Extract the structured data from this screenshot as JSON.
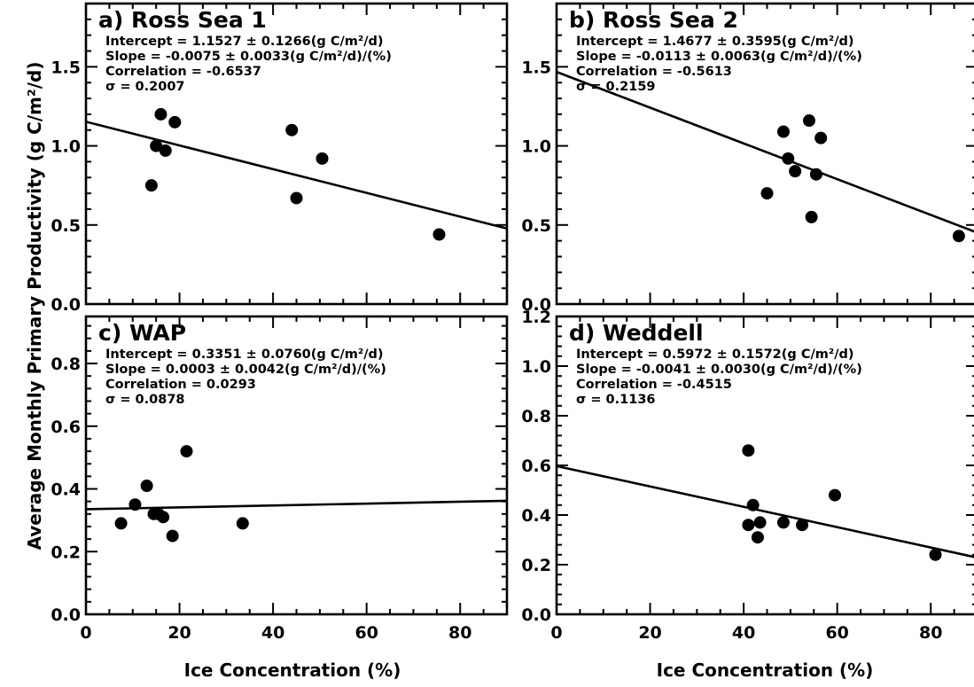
{
  "figure": {
    "xlabel": "Ice Concentration (%)",
    "ylabel": "Average Monthly Primary Productivity (g C/m²/d)"
  },
  "chart_data": [
    {
      "type": "scatter",
      "title": "a) Ross Sea 1",
      "xlim": [
        0,
        90
      ],
      "ylim": [
        0,
        1.9
      ],
      "yticks": [
        0.0,
        0.5,
        1.0,
        1.5
      ],
      "xticks": [
        0,
        20,
        40,
        60,
        80
      ],
      "annotations": [
        "Intercept = 1.1527 ± 0.1266(g C/m²/d)",
        "Slope = -0.0075 ± 0.0033(g C/m²/d)/(%)",
        "Correlation =   -0.6537",
        "σ = 0.2007"
      ],
      "fit": {
        "intercept": 1.1527,
        "slope": -0.0075
      },
      "points": [
        {
          "x": 14,
          "y": 0.75
        },
        {
          "x": 15,
          "y": 1.0
        },
        {
          "x": 16,
          "y": 1.2
        },
        {
          "x": 17,
          "y": 0.97
        },
        {
          "x": 19,
          "y": 1.15
        },
        {
          "x": 44,
          "y": 1.1
        },
        {
          "x": 45,
          "y": 0.67
        },
        {
          "x": 50.5,
          "y": 0.92
        },
        {
          "x": 75.5,
          "y": 0.44
        }
      ]
    },
    {
      "type": "scatter",
      "title": "b) Ross Sea 2",
      "xlim": [
        0,
        90
      ],
      "ylim": [
        0,
        1.9
      ],
      "yticks": [
        0.0,
        0.5,
        1.0,
        1.5
      ],
      "xticks": [
        0,
        20,
        40,
        60,
        80
      ],
      "annotations": [
        "Intercept = 1.4677 ± 0.3595(g C/m²/d)",
        "Slope = -0.0113 ± 0.0063(g C/m²/d)/(%)",
        "Correlation =   -0.5613",
        "σ = 0.2159"
      ],
      "fit": {
        "intercept": 1.4677,
        "slope": -0.0113
      },
      "points": [
        {
          "x": 45,
          "y": 0.7
        },
        {
          "x": 48.5,
          "y": 1.09
        },
        {
          "x": 49.5,
          "y": 0.92
        },
        {
          "x": 51,
          "y": 0.84
        },
        {
          "x": 54,
          "y": 1.16
        },
        {
          "x": 54.5,
          "y": 0.55
        },
        {
          "x": 55.5,
          "y": 0.82
        },
        {
          "x": 56.5,
          "y": 1.05
        },
        {
          "x": 86,
          "y": 0.43
        }
      ]
    },
    {
      "type": "scatter",
      "title": "c) WAP",
      "xlim": [
        0,
        90
      ],
      "ylim": [
        0,
        0.95
      ],
      "yticks": [
        0.0,
        0.2,
        0.4,
        0.6,
        0.8
      ],
      "xticks": [
        0,
        20,
        40,
        60,
        80
      ],
      "annotations": [
        "Intercept = 0.3351 ± 0.0760(g C/m²/d)",
        "Slope = 0.0003 ± 0.0042(g C/m²/d)/(%)",
        "Correlation =   0.0293",
        "σ = 0.0878"
      ],
      "fit": {
        "intercept": 0.3351,
        "slope": 0.0003
      },
      "points": [
        {
          "x": 7.5,
          "y": 0.29
        },
        {
          "x": 10.5,
          "y": 0.35
        },
        {
          "x": 13,
          "y": 0.41
        },
        {
          "x": 14.5,
          "y": 0.32
        },
        {
          "x": 15.5,
          "y": 0.32
        },
        {
          "x": 16.5,
          "y": 0.31
        },
        {
          "x": 18.5,
          "y": 0.25
        },
        {
          "x": 21.5,
          "y": 0.52
        },
        {
          "x": 33.5,
          "y": 0.29
        }
      ]
    },
    {
      "type": "scatter",
      "title": "d) Weddell",
      "xlim": [
        0,
        90
      ],
      "ylim": [
        0,
        1.2
      ],
      "yticks": [
        0.0,
        0.2,
        0.4,
        0.6,
        0.8,
        1.0,
        1.2
      ],
      "xticks": [
        0,
        20,
        40,
        60,
        80
      ],
      "annotations": [
        "Intercept = 0.5972 ± 0.1572(g C/m²/d)",
        "Slope = -0.0041 ± 0.0030(g C/m²/d)/(%)",
        "Correlation =   -0.4515",
        "σ = 0.1136"
      ],
      "fit": {
        "intercept": 0.5972,
        "slope": -0.0041
      },
      "points": [
        {
          "x": 41,
          "y": 0.66
        },
        {
          "x": 41,
          "y": 0.36
        },
        {
          "x": 42,
          "y": 0.44
        },
        {
          "x": 43,
          "y": 0.31
        },
        {
          "x": 43.5,
          "y": 0.37
        },
        {
          "x": 48.5,
          "y": 0.37
        },
        {
          "x": 52.5,
          "y": 0.36
        },
        {
          "x": 59.5,
          "y": 0.48
        },
        {
          "x": 81,
          "y": 0.24
        }
      ]
    }
  ]
}
